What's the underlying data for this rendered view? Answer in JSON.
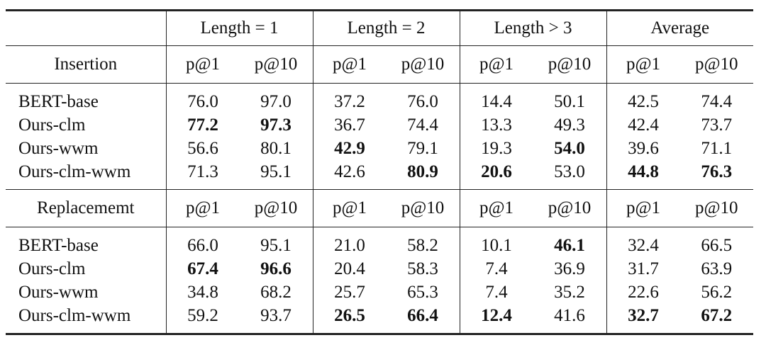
{
  "table": {
    "groups": [
      "Length = 1",
      "Length = 2",
      "Length > 3",
      "Average"
    ],
    "sections": [
      {
        "title": "Insertion",
        "metrics": [
          "p@1",
          "p@10",
          "p@1",
          "p@10",
          "p@1",
          "p@10",
          "p@1",
          "p@10"
        ],
        "rows": [
          {
            "label": "BERT-base",
            "values": [
              "76.0",
              "97.0",
              "37.2",
              "76.0",
              "14.4",
              "50.1",
              "42.5",
              "74.4"
            ]
          },
          {
            "label": "Ours-clm",
            "values": [
              "77.2",
              "97.3",
              "36.7",
              "74.4",
              "13.3",
              "49.3",
              "42.4",
              "73.7"
            ],
            "bold": [
              0,
              1
            ]
          },
          {
            "label": "Ours-wwm",
            "values": [
              "56.6",
              "80.1",
              "42.9",
              "79.1",
              "19.3",
              "54.0",
              "39.6",
              "71.1"
            ],
            "bold": [
              2,
              5
            ]
          },
          {
            "label": "Ours-clm-wwm",
            "values": [
              "71.3",
              "95.1",
              "42.6",
              "80.9",
              "20.6",
              "53.0",
              "44.8",
              "76.3"
            ],
            "bold": [
              3,
              4,
              6,
              7
            ]
          }
        ]
      },
      {
        "title": "Replacememt",
        "metrics": [
          "p@1",
          "p@10",
          "p@1",
          "p@10",
          "p@1",
          "p@10",
          "p@1",
          "p@10"
        ],
        "rows": [
          {
            "label": "BERT-base",
            "values": [
              "66.0",
              "95.1",
              "21.0",
              "58.2",
              "10.1",
              "46.1",
              "32.4",
              "66.5"
            ],
            "bold": [
              5
            ]
          },
          {
            "label": "Ours-clm",
            "values": [
              "67.4",
              "96.6",
              "20.4",
              "58.3",
              "7.4",
              "36.9",
              "31.7",
              "63.9"
            ],
            "bold": [
              0,
              1
            ]
          },
          {
            "label": "Ours-wwm",
            "values": [
              "34.8",
              "68.2",
              "25.7",
              "65.3",
              "7.4",
              "35.2",
              "22.6",
              "56.2"
            ]
          },
          {
            "label": "Ours-clm-wwm",
            "values": [
              "59.2",
              "93.7",
              "26.5",
              "66.4",
              "12.4",
              "41.6",
              "32.7",
              "67.2"
            ],
            "bold": [
              2,
              3,
              4,
              6,
              7
            ]
          }
        ]
      }
    ]
  }
}
